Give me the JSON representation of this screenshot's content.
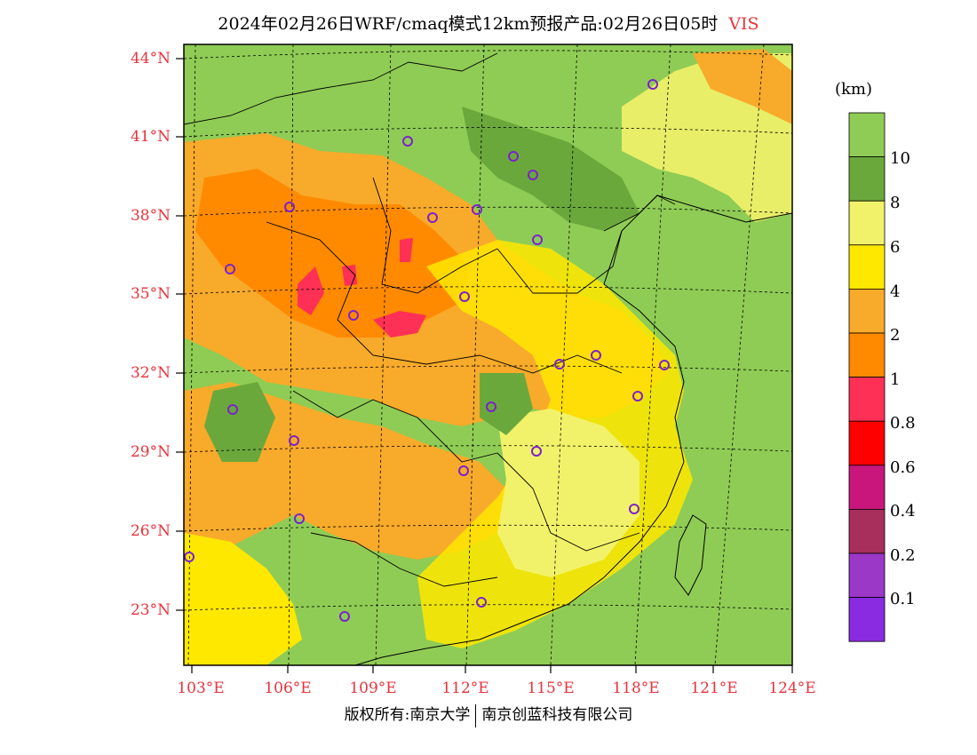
{
  "title": {
    "text": "2024年02月26日WRF/cmaq模式12km预报产品:02月26日05时",
    "variable": "VIS"
  },
  "colorbar": {
    "unit": "(km)",
    "labels": [
      "10",
      "8",
      "6",
      "4",
      "2",
      "1",
      "0.8",
      "0.6",
      "0.4",
      "0.2",
      "0.1"
    ],
    "colors": [
      "#8fcc55",
      "#6aa83c",
      "#f2f26a",
      "#ffe800",
      "#f8aa2a",
      "#ff8a00",
      "#ff3055",
      "#ff0000",
      "#c8167c",
      "#a82e5c",
      "#9b38c8",
      "#8a2be2"
    ]
  },
  "axes": {
    "lat_labels": [
      "44°N",
      "41°N",
      "38°N",
      "35°N",
      "32°N",
      "29°N",
      "26°N",
      "23°N"
    ],
    "lon_labels": [
      "103°E",
      "106°E",
      "109°E",
      "112°E",
      "115°E",
      "118°E",
      "121°E",
      "124°E"
    ]
  },
  "copyright": {
    "left": "版权所有:南京大学",
    "right": "南京创蓝科技有限公司"
  }
}
